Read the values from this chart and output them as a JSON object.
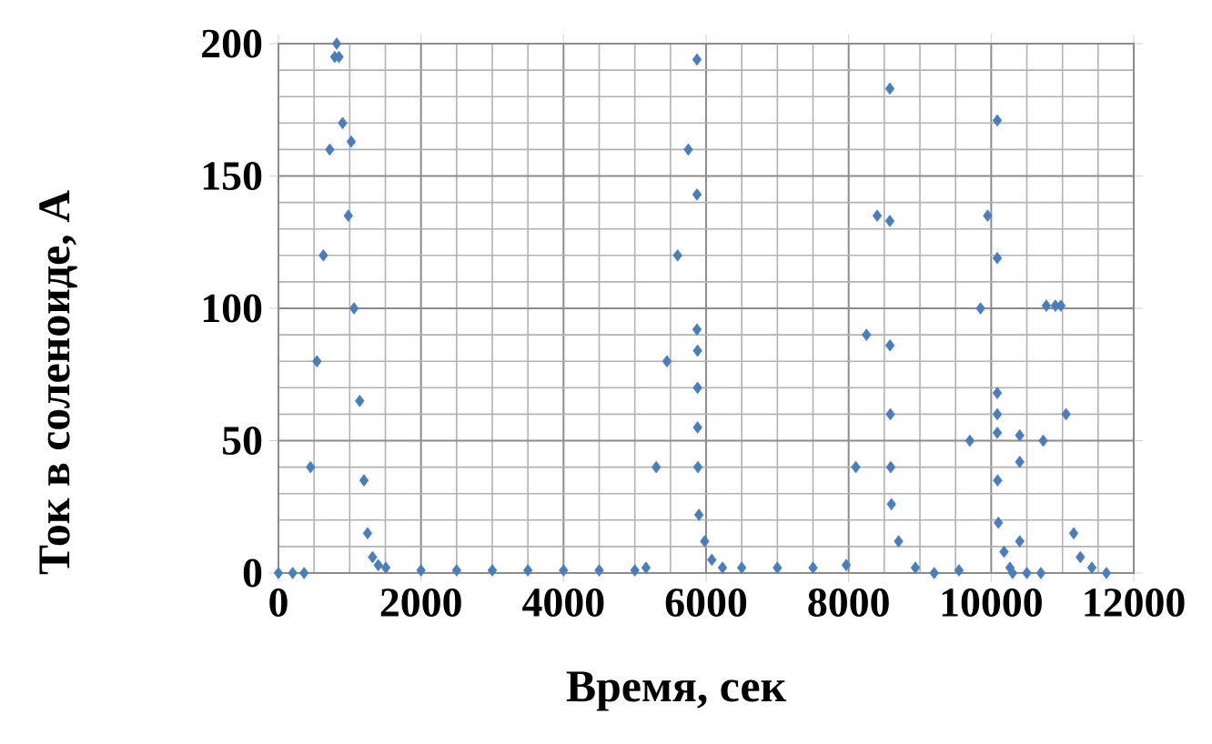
{
  "chart_data": {
    "type": "scatter",
    "xlabel": "Время, сек",
    "ylabel": "Ток в соленоиде, А",
    "x": [
      0,
      200,
      360,
      450,
      540,
      630,
      720,
      790,
      817,
      850,
      1021,
      900,
      980,
      1060,
      1140,
      1200,
      1250,
      1320,
      1400,
      1506,
      2000,
      2500,
      3000,
      3500,
      4000,
      4500,
      5000,
      5157,
      5300,
      5450,
      5600,
      5750,
      5872,
      5872,
      5872,
      5880,
      5880,
      5880,
      5885,
      5900,
      5980,
      6080,
      6230,
      6500,
      7000,
      7500,
      7966,
      8100,
      8250,
      8400,
      8578,
      8578,
      8580,
      8585,
      8590,
      8600,
      8700,
      8936,
      9200,
      9548,
      9700,
      9850,
      9950,
      10085,
      10085,
      10085,
      10085,
      10085,
      10090,
      10100,
      10180,
      10263,
      10300,
      10400,
      10400,
      10400,
      10500,
      10697,
      10730,
      10773,
      10900,
      10978,
      11050,
      11157,
      11250,
      11412,
      11616
    ],
    "values": [
      0,
      0,
      0,
      40,
      80,
      120,
      160,
      195,
      200,
      195,
      163,
      170,
      135,
      100,
      65,
      35,
      15,
      6,
      3,
      2,
      1,
      1,
      1,
      1,
      1,
      1,
      1,
      2,
      40,
      80,
      120,
      160,
      194,
      143,
      92,
      84,
      70,
      55,
      40,
      22,
      12,
      5,
      2,
      2,
      2,
      2,
      3,
      40,
      90,
      135,
      183,
      133,
      86,
      60,
      40,
      26,
      12,
      2,
      0,
      1,
      50,
      100,
      135,
      171,
      119,
      68,
      60,
      53,
      35,
      19,
      8,
      2,
      0,
      52,
      42,
      12,
      0,
      0,
      50,
      101,
      101,
      101,
      60,
      15,
      6,
      2,
      0
    ],
    "color": "#4a7ebb",
    "marker": "diamond",
    "grid": true,
    "xlim": [
      0,
      12000
    ],
    "ylim": [
      0,
      200
    ],
    "xticks": [
      0,
      2000,
      4000,
      6000,
      8000,
      10000,
      12000
    ],
    "yticks": [
      0,
      50,
      100,
      150,
      200
    ]
  }
}
